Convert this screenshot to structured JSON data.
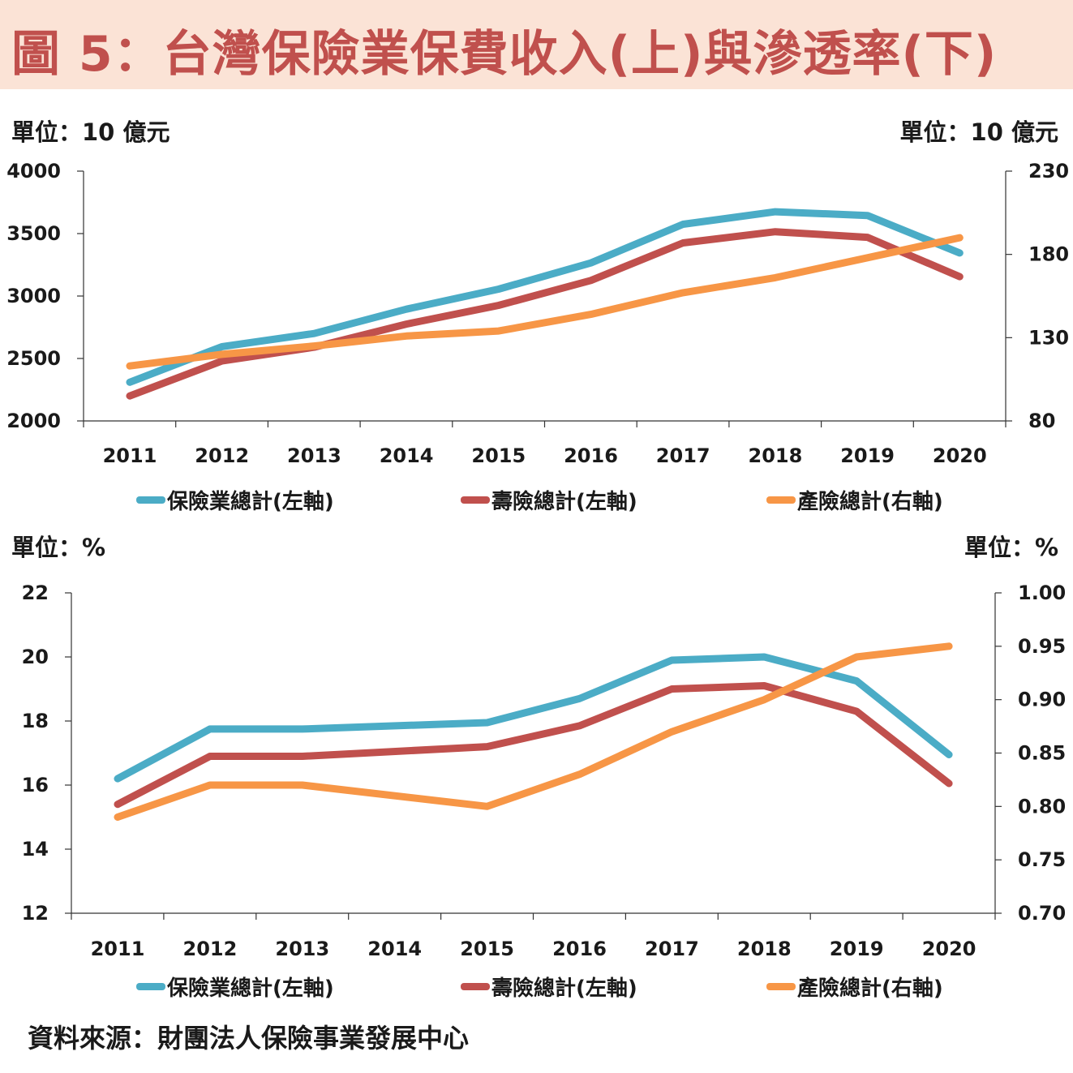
{
  "title": "圖 5：台灣保險業保費收入(上)與滲透率(下)",
  "source": "資料來源：財團法人保險事業發展中心",
  "colors": {
    "total": "#4bacc6",
    "life": "#c0504d",
    "nonlife": "#f79646",
    "title": "#c0504d",
    "title_bg": "#fbe3d6"
  },
  "chart_data": [
    {
      "type": "line",
      "unit_left": "單位：10 億元",
      "unit_right": "單位：10 億元",
      "categories": [
        "2011",
        "2012",
        "2013",
        "2014",
        "2015",
        "2016",
        "2017",
        "2018",
        "2019",
        "2020"
      ],
      "y_left": {
        "min": 2000,
        "max": 4000,
        "ticks": [
          "2000",
          "2500",
          "3000",
          "3500",
          "4000"
        ]
      },
      "y_right": {
        "min": 80,
        "max": 230,
        "ticks": [
          "80",
          "130",
          "180",
          "230"
        ]
      },
      "series": [
        {
          "name": "保險業總計(左軸)",
          "axis": "left",
          "color": "#4bacc6",
          "values": [
            2310,
            2595,
            2700,
            2895,
            3055,
            3265,
            3575,
            3675,
            3645,
            3345
          ]
        },
        {
          "name": "壽險總計(左軸)",
          "axis": "left",
          "color": "#c0504d",
          "values": [
            2200,
            2480,
            2590,
            2775,
            2925,
            3125,
            3425,
            3515,
            3470,
            3155
          ]
        },
        {
          "name": "產險總計(右軸)",
          "axis": "right",
          "color": "#f79646",
          "values": [
            113,
            120,
            125,
            131,
            134,
            144,
            157,
            166,
            178,
            190
          ]
        }
      ],
      "legend_position": "bottom"
    },
    {
      "type": "line",
      "unit_left": "單位：%",
      "unit_right": "單位：%",
      "categories": [
        "2011",
        "2012",
        "2013",
        "2014",
        "2015",
        "2016",
        "2017",
        "2018",
        "2019",
        "2020"
      ],
      "y_left": {
        "min": 12,
        "max": 22,
        "ticks": [
          "12",
          "14",
          "16",
          "18",
          "20",
          "22"
        ]
      },
      "y_right": {
        "min": 0.7,
        "max": 1.0,
        "ticks": [
          "0.70",
          "0.75",
          "0.80",
          "0.85",
          "0.90",
          "0.95",
          "1.00"
        ]
      },
      "series": [
        {
          "name": "保險業總計(左軸)",
          "axis": "left",
          "color": "#4bacc6",
          "values": [
            16.2,
            17.75,
            17.75,
            null,
            17.95,
            18.7,
            19.9,
            20.0,
            19.25,
            16.95
          ]
        },
        {
          "name": "壽險總計(左軸)",
          "axis": "left",
          "color": "#c0504d",
          "values": [
            15.4,
            16.9,
            16.9,
            null,
            17.2,
            17.85,
            19.0,
            19.1,
            18.3,
            16.05
          ]
        },
        {
          "name": "產險總計(右軸)",
          "axis": "right",
          "color": "#f79646",
          "values": [
            0.79,
            0.82,
            0.82,
            null,
            0.8,
            0.83,
            0.87,
            0.9,
            0.94,
            0.95
          ]
        }
      ],
      "legend_position": "bottom"
    }
  ]
}
